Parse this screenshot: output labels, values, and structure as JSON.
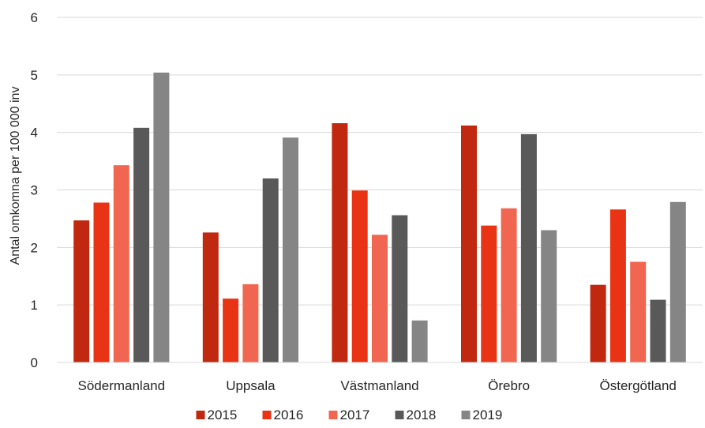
{
  "chart_data": {
    "type": "bar",
    "title": "",
    "xlabel": "",
    "ylabel": "Antal omkomna per 100 000 inv",
    "ylim": [
      0,
      6
    ],
    "yticks": [
      0,
      1,
      2,
      3,
      4,
      5,
      6
    ],
    "grid": true,
    "legend": "bottom",
    "categories": [
      "Södermanland",
      "Uppsala",
      "Västmanland",
      "Örebro",
      "Östergötland"
    ],
    "series": [
      {
        "name": "2015",
        "color": "#c0290f",
        "values": [
          2.47,
          2.26,
          4.16,
          4.12,
          1.35
        ]
      },
      {
        "name": "2016",
        "color": "#e83414",
        "values": [
          2.78,
          1.11,
          2.99,
          2.38,
          2.66
        ]
      },
      {
        "name": "2017",
        "color": "#f06650",
        "values": [
          3.43,
          1.36,
          2.22,
          2.68,
          1.75
        ]
      },
      {
        "name": "2018",
        "color": "#595959",
        "values": [
          4.08,
          3.2,
          2.56,
          3.97,
          1.09
        ]
      },
      {
        "name": "2019",
        "color": "#858585",
        "values": [
          5.04,
          3.91,
          0.73,
          2.3,
          2.79
        ]
      }
    ]
  }
}
